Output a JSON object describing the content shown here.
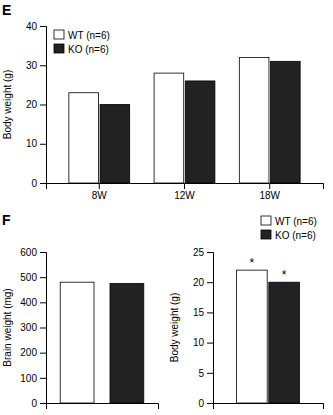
{
  "chart_data": [
    {
      "type": "bar",
      "title": "E",
      "categories": [
        "8W",
        "12W",
        "18W"
      ],
      "series": [
        {
          "name": "WT (n=6)",
          "color": "white",
          "values": [
            23,
            28,
            32
          ]
        },
        {
          "name": "KO (n=6)",
          "color": "#222222",
          "values": [
            20,
            26,
            31
          ]
        }
      ],
      "ylabel": "Body weight (g)",
      "ylim": [
        0,
        40
      ],
      "yticks": [
        0,
        10,
        20,
        30,
        40
      ],
      "legend": "upper left"
    },
    {
      "type": "bar",
      "title": "F",
      "categories": [
        null,
        null
      ],
      "values": [
        480,
        475
      ],
      "colors": [
        "white",
        "#222222"
      ],
      "ylabel": "Brain weight (mg)",
      "ylim": [
        0,
        600
      ],
      "yticks": [
        0,
        100,
        200,
        300,
        400,
        500,
        600
      ]
    },
    {
      "type": "bar",
      "categories": [
        null
      ],
      "series": [
        {
          "name": "WT (n=6)",
          "color": "white",
          "values": [
            22
          ]
        },
        {
          "name": "KO (n=6)",
          "color": "#222222",
          "values": [
            20
          ]
        }
      ],
      "ylabel": "Body weight (g)",
      "ylim": [
        0,
        25
      ],
      "yticks": [
        0,
        5,
        10,
        15,
        20,
        25
      ],
      "legend": "upper right",
      "annotations": [
        "*",
        "*"
      ]
    }
  ]
}
